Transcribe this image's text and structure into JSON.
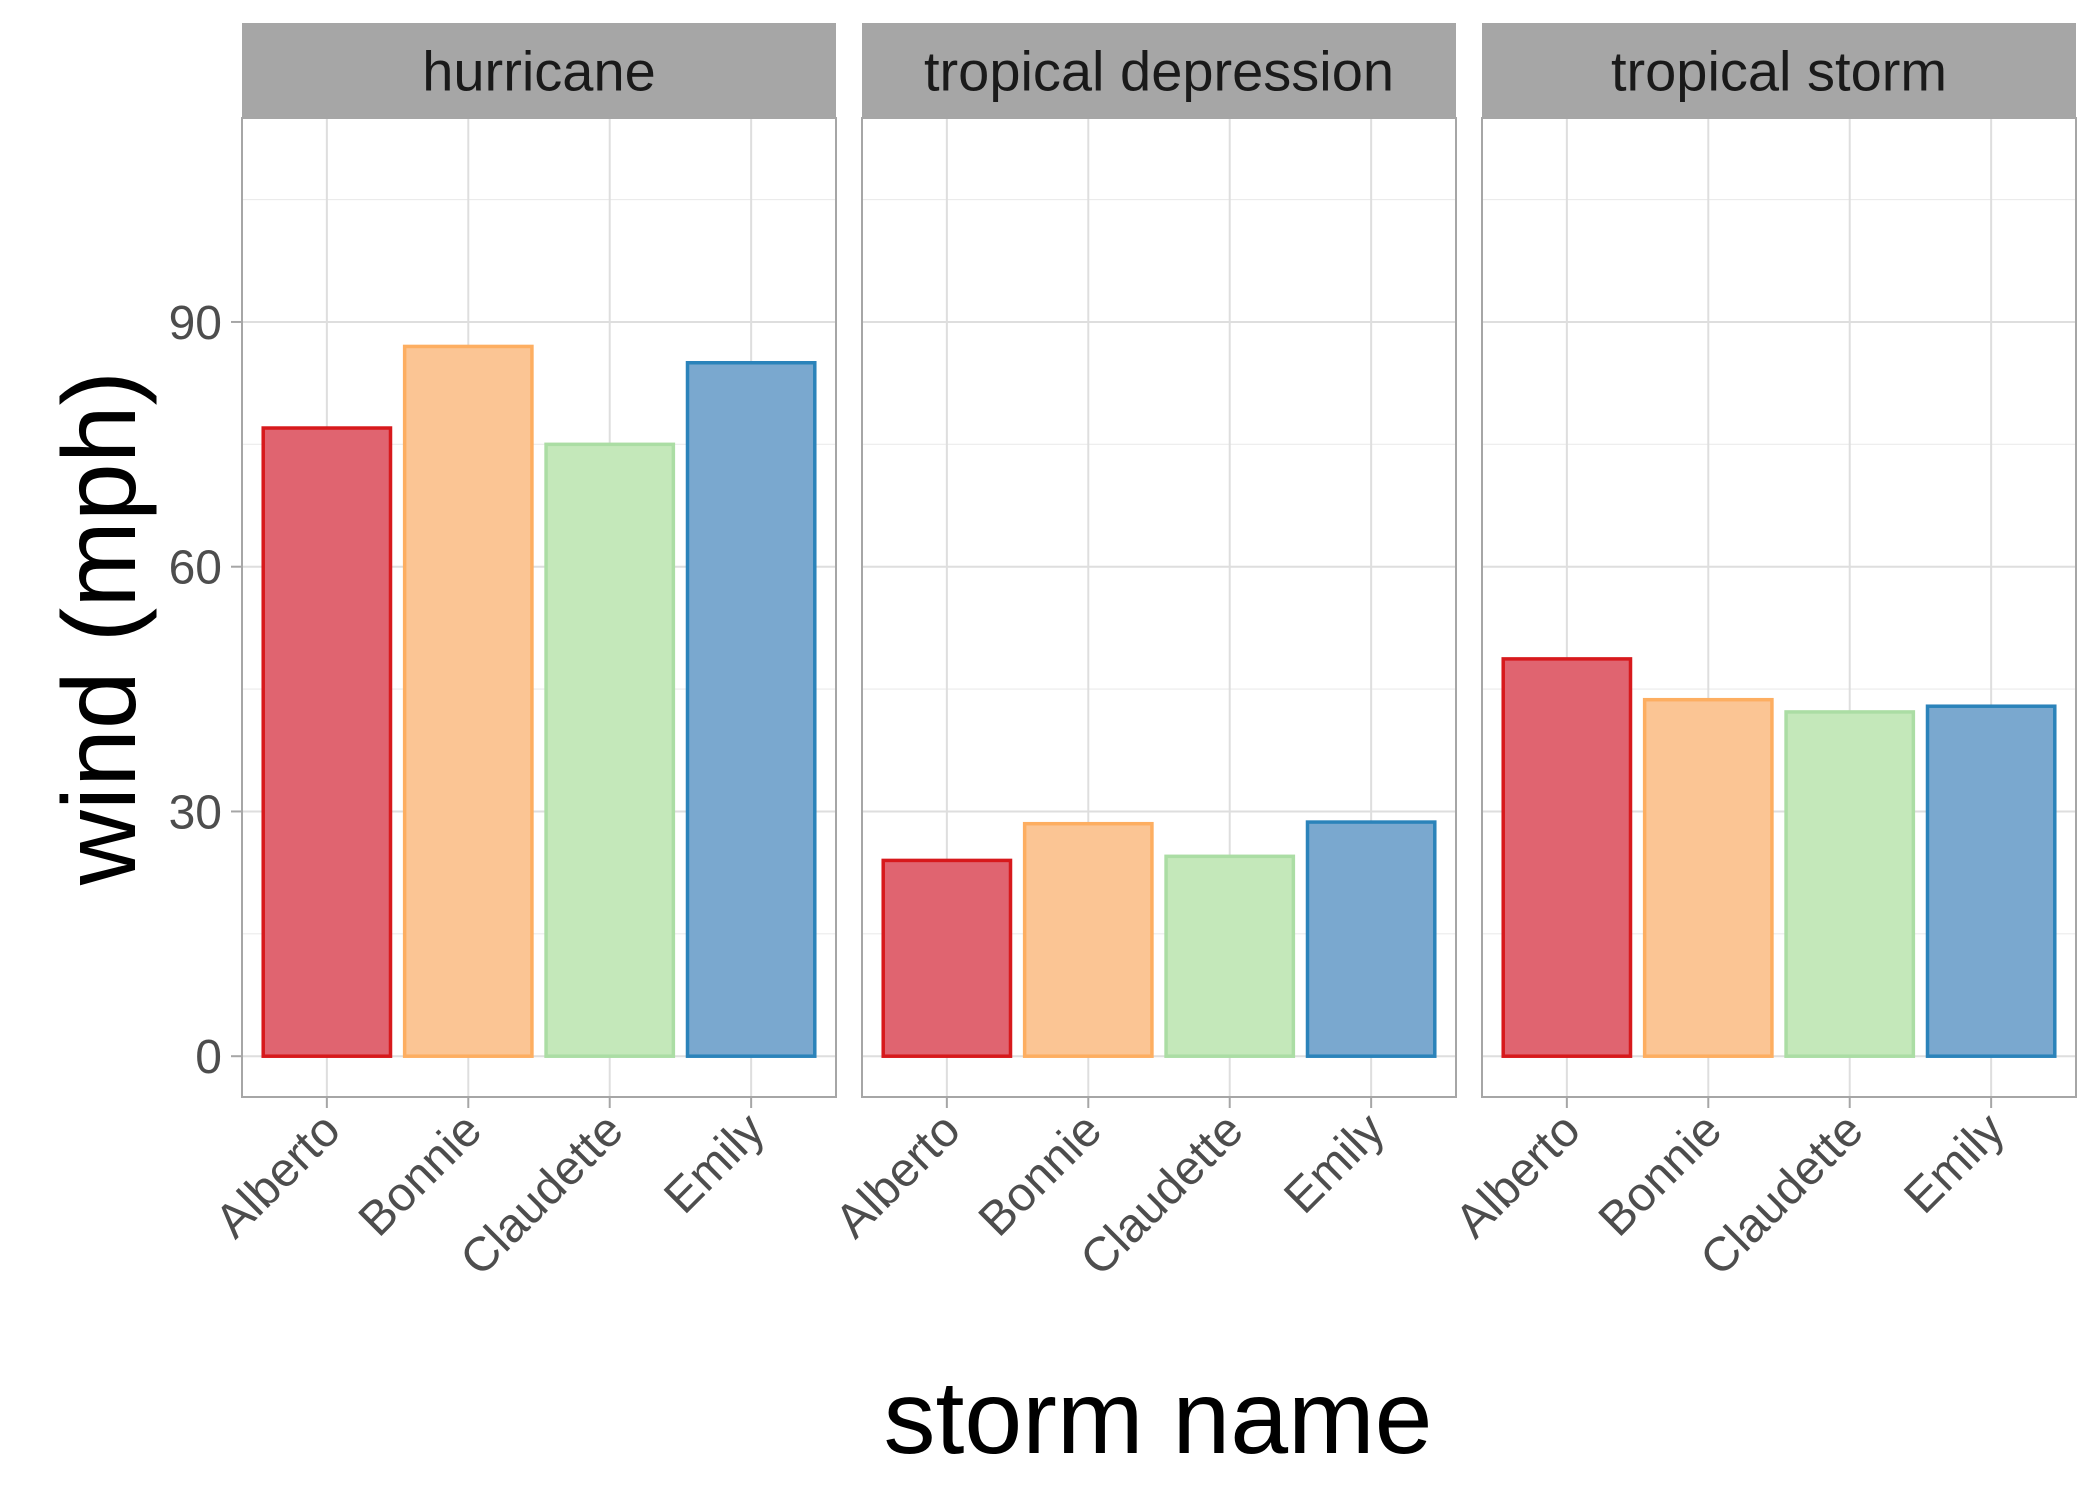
{
  "chart_data": {
    "type": "bar",
    "xlabel": "storm name",
    "ylabel": "wind (mph)",
    "ylim": [
      -5,
      115
    ],
    "yticks": [
      0,
      30,
      60,
      90
    ],
    "grid": true,
    "legend": "none",
    "categories": [
      "Alberto",
      "Bonnie",
      "Claudette",
      "Emily"
    ],
    "category_colors": {
      "fill": [
        "#e06470",
        "#fbc594",
        "#c4e8ba",
        "#7aa8cf"
      ],
      "stroke": [
        "#d7191c",
        "#fdae61",
        "#abdda4",
        "#2b83ba"
      ]
    },
    "panels": [
      {
        "name": "hurricane",
        "values": [
          77,
          87,
          75,
          85
        ]
      },
      {
        "name": "tropical depression",
        "values": [
          24,
          28.5,
          24.5,
          28.7
        ]
      },
      {
        "name": "tropical storm",
        "values": [
          48.7,
          43.7,
          42.2,
          42.9
        ]
      }
    ]
  }
}
